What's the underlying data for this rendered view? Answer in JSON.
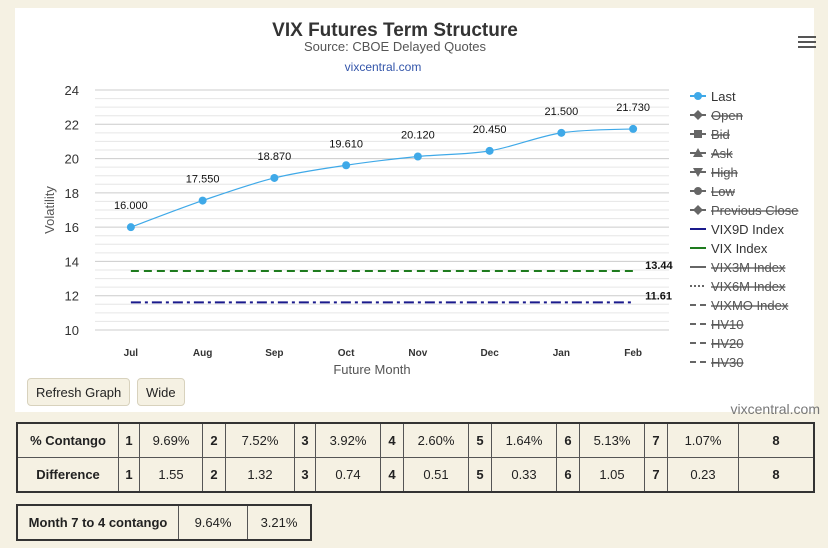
{
  "chart_data": {
    "type": "line",
    "title": "VIX Futures Term Structure",
    "subtitle": "Source: CBOE Delayed Quotes",
    "source_link": "vixcentral.com",
    "xlabel": "Future Month",
    "ylabel": "Volatility",
    "categories": [
      "Jul",
      "Aug",
      "Sep",
      "Oct",
      "Nov",
      "Dec",
      "Jan",
      "Feb"
    ],
    "ylim": [
      10,
      24
    ],
    "yticks": [
      10,
      12,
      14,
      16,
      18,
      20,
      22,
      24
    ],
    "grid": true,
    "series": [
      {
        "name": "Last",
        "values": [
          16.0,
          17.55,
          18.87,
          19.61,
          20.12,
          20.45,
          21.5,
          21.73
        ],
        "labels": [
          "16.000",
          "17.550",
          "18.870",
          "19.610",
          "20.120",
          "20.450",
          "21.500",
          "21.730"
        ],
        "color": "#3fa9e8"
      },
      {
        "name": "VIX9D Index",
        "value": 11.61,
        "label": "11.61",
        "color": "#1a1a8c",
        "dash": "dashdot"
      },
      {
        "name": "VIX Index",
        "value": 13.44,
        "label": "13.44",
        "color": "#1e7b1e",
        "dash": "dash"
      }
    ],
    "legend_placement": "right",
    "legend": [
      {
        "name": "Last",
        "symbol": "circle-line",
        "color": "#3fa9e8",
        "disabled": false
      },
      {
        "name": "Open",
        "symbol": "diamond",
        "color": "#666",
        "disabled": true
      },
      {
        "name": "Bid",
        "symbol": "square",
        "color": "#666",
        "disabled": true
      },
      {
        "name": "Ask",
        "symbol": "triangle",
        "color": "#666",
        "disabled": true
      },
      {
        "name": "High",
        "symbol": "triangle-down",
        "color": "#666",
        "disabled": true
      },
      {
        "name": "Low",
        "symbol": "circle",
        "color": "#666",
        "disabled": true
      },
      {
        "name": "Previous Close",
        "symbol": "diamond",
        "color": "#666",
        "disabled": true
      },
      {
        "name": "VIX9D Index",
        "symbol": "line",
        "color": "#1a1a8c",
        "disabled": false
      },
      {
        "name": "VIX Index",
        "symbol": "line",
        "color": "#1e7b1e",
        "disabled": false
      },
      {
        "name": "VIX3M Index",
        "symbol": "line",
        "color": "#666",
        "disabled": true
      },
      {
        "name": "VIX6M Index",
        "symbol": "dotline",
        "color": "#666",
        "disabled": true
      },
      {
        "name": "VIXMO Index",
        "symbol": "dashline",
        "color": "#666",
        "disabled": true
      },
      {
        "name": "HV10",
        "symbol": "dashline",
        "color": "#666",
        "disabled": true
      },
      {
        "name": "HV20",
        "symbol": "dashline",
        "color": "#666",
        "disabled": true
      },
      {
        "name": "HV30",
        "symbol": "dashline",
        "color": "#666",
        "disabled": true
      }
    ]
  },
  "buttons": {
    "refresh": "Refresh Graph",
    "wide": "Wide"
  },
  "credit": "vixcentral.com",
  "contango_table": {
    "rows": [
      {
        "label": "% Contango",
        "cells": [
          [
            "1",
            "9.69%"
          ],
          [
            "2",
            "7.52%"
          ],
          [
            "3",
            "3.92%"
          ],
          [
            "4",
            "2.60%"
          ],
          [
            "5",
            "1.64%"
          ],
          [
            "6",
            "5.13%"
          ],
          [
            "7",
            "1.07%"
          ]
        ],
        "last": "8"
      },
      {
        "label": "Difference",
        "cells": [
          [
            "1",
            "1.55"
          ],
          [
            "2",
            "1.32"
          ],
          [
            "3",
            "0.74"
          ],
          [
            "4",
            "0.51"
          ],
          [
            "5",
            "0.33"
          ],
          [
            "6",
            "1.05"
          ],
          [
            "7",
            "0.23"
          ]
        ],
        "last": "8"
      }
    ]
  },
  "month_table": {
    "label": "Month 7 to 4 contango",
    "values": [
      "9.64%",
      "3.21%"
    ]
  }
}
